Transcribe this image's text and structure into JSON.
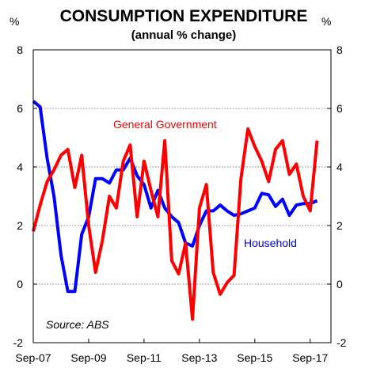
{
  "chart_data": {
    "type": "line",
    "title": "CONSUMPTION EXPENDITURE",
    "subtitle": "(annual % change)",
    "unit_left": "%",
    "unit_right": "%",
    "source": "Source: ABS",
    "ylim": [
      -2,
      8
    ],
    "yticks": [
      "8",
      "6",
      "4",
      "2",
      "0",
      "-2"
    ],
    "ytick_values": [
      8,
      6,
      4,
      2,
      0,
      -2
    ],
    "grid": "horizontal dotted",
    "xlim": [
      "2007-09",
      "2018-06"
    ],
    "xticks": [
      {
        "label": "Sep-07",
        "date": "2007-09"
      },
      {
        "label": "Sep-09",
        "date": "2009-09"
      },
      {
        "label": "Sep-11",
        "date": "2011-09"
      },
      {
        "label": "Sep-13",
        "date": "2013-09"
      },
      {
        "label": "Sep-15",
        "date": "2015-09"
      },
      {
        "label": "Sep-17",
        "date": "2017-09"
      }
    ],
    "series": [
      {
        "name": "Household",
        "color": "#0000ff",
        "points": [
          [
            "2007-09",
            6.25
          ],
          [
            "2007-12",
            6.05
          ],
          [
            "2008-03",
            4.3
          ],
          [
            "2008-06",
            3.0
          ],
          [
            "2008-09",
            1.0
          ],
          [
            "2008-12",
            -0.25
          ],
          [
            "2009-03",
            -0.25
          ],
          [
            "2009-06",
            1.7
          ],
          [
            "2009-09",
            2.3
          ],
          [
            "2009-12",
            3.6
          ],
          [
            "2010-03",
            3.6
          ],
          [
            "2010-06",
            3.45
          ],
          [
            "2010-09",
            3.9
          ],
          [
            "2010-12",
            3.9
          ],
          [
            "2011-03",
            4.3
          ],
          [
            "2011-06",
            3.7
          ],
          [
            "2011-09",
            3.4
          ],
          [
            "2011-12",
            2.6
          ],
          [
            "2012-03",
            3.2
          ],
          [
            "2012-06",
            2.6
          ],
          [
            "2012-09",
            2.3
          ],
          [
            "2012-12",
            2.1
          ],
          [
            "2013-03",
            1.4
          ],
          [
            "2013-06",
            1.3
          ],
          [
            "2013-09",
            2.0
          ],
          [
            "2013-12",
            2.5
          ],
          [
            "2014-03",
            2.5
          ],
          [
            "2014-06",
            2.7
          ],
          [
            "2014-09",
            2.5
          ],
          [
            "2014-12",
            2.35
          ],
          [
            "2015-03",
            2.4
          ],
          [
            "2015-06",
            2.5
          ],
          [
            "2015-09",
            2.6
          ],
          [
            "2015-12",
            3.1
          ],
          [
            "2016-03",
            3.05
          ],
          [
            "2016-06",
            2.65
          ],
          [
            "2016-09",
            2.9
          ],
          [
            "2016-12",
            2.35
          ],
          [
            "2017-03",
            2.7
          ],
          [
            "2017-06",
            2.75
          ],
          [
            "2017-09",
            2.75
          ],
          [
            "2017-12",
            2.85
          ]
        ]
      },
      {
        "name": "General Government",
        "color": "#ff0000",
        "points": [
          [
            "2007-09",
            1.8
          ],
          [
            "2007-12",
            2.7
          ],
          [
            "2008-03",
            3.5
          ],
          [
            "2008-06",
            3.9
          ],
          [
            "2008-09",
            4.4
          ],
          [
            "2008-12",
            4.6
          ],
          [
            "2009-03",
            3.3
          ],
          [
            "2009-06",
            4.4
          ],
          [
            "2009-09",
            2.0
          ],
          [
            "2009-12",
            0.4
          ],
          [
            "2010-03",
            1.5
          ],
          [
            "2010-06",
            3.0
          ],
          [
            "2010-09",
            2.6
          ],
          [
            "2010-12",
            4.2
          ],
          [
            "2011-03",
            4.75
          ],
          [
            "2011-06",
            2.3
          ],
          [
            "2011-09",
            4.2
          ],
          [
            "2011-12",
            3.2
          ],
          [
            "2012-03",
            2.3
          ],
          [
            "2012-06",
            4.9
          ],
          [
            "2012-09",
            0.8
          ],
          [
            "2012-12",
            0.35
          ],
          [
            "2013-03",
            1.4
          ],
          [
            "2013-06",
            -1.2
          ],
          [
            "2013-09",
            2.6
          ],
          [
            "2013-12",
            3.4
          ],
          [
            "2014-03",
            0.4
          ],
          [
            "2014-06",
            -0.35
          ],
          [
            "2014-09",
            0.05
          ],
          [
            "2014-12",
            0.3
          ],
          [
            "2015-03",
            3.6
          ],
          [
            "2015-06",
            5.3
          ],
          [
            "2015-09",
            4.7
          ],
          [
            "2015-12",
            4.2
          ],
          [
            "2016-03",
            3.5
          ],
          [
            "2016-06",
            4.6
          ],
          [
            "2016-09",
            4.9
          ],
          [
            "2016-12",
            3.75
          ],
          [
            "2017-03",
            4.1
          ],
          [
            "2017-06",
            3.0
          ],
          [
            "2017-09",
            2.5
          ],
          [
            "2017-12",
            4.9
          ]
        ]
      }
    ]
  }
}
